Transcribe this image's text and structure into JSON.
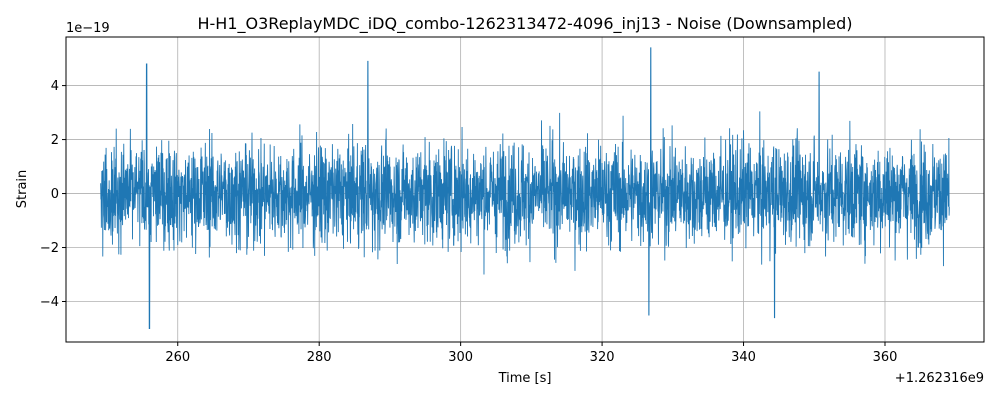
{
  "chart_data": {
    "type": "line",
    "title": "H-H1_O3ReplayMDC_iDQ_combo-1262313472-4096_inj13 - Noise (Downsampled)",
    "xlabel": "Time [s]",
    "ylabel": "Strain",
    "x_offset_label": "+1.262316e9",
    "y_exponent_label": "1e−19",
    "xlim": [
      244.2,
      374
    ],
    "ylim": [
      -5.5,
      5.8
    ],
    "x_range": [
      249.1,
      369.1
    ],
    "x_ticks": [
      260,
      280,
      300,
      320,
      340,
      360
    ],
    "y_ticks": [
      -4,
      -2,
      0,
      2,
      4
    ],
    "x_tick_labels": [
      "260",
      "280",
      "300",
      "320",
      "340",
      "360"
    ],
    "y_tick_labels": [
      "−4",
      "−2",
      "0",
      "2",
      "4"
    ],
    "grid": true,
    "series_color": "#1f77b4",
    "notable_peaks": [
      {
        "x": 255.6,
        "y": 4.8
      },
      {
        "x": 256.0,
        "y": -5.0
      },
      {
        "x": 286.9,
        "y": 4.9
      },
      {
        "x": 326.9,
        "y": 5.4
      },
      {
        "x": 326.6,
        "y": -4.5
      },
      {
        "x": 344.4,
        "y": -4.6
      },
      {
        "x": 350.7,
        "y": 4.5
      }
    ]
  }
}
